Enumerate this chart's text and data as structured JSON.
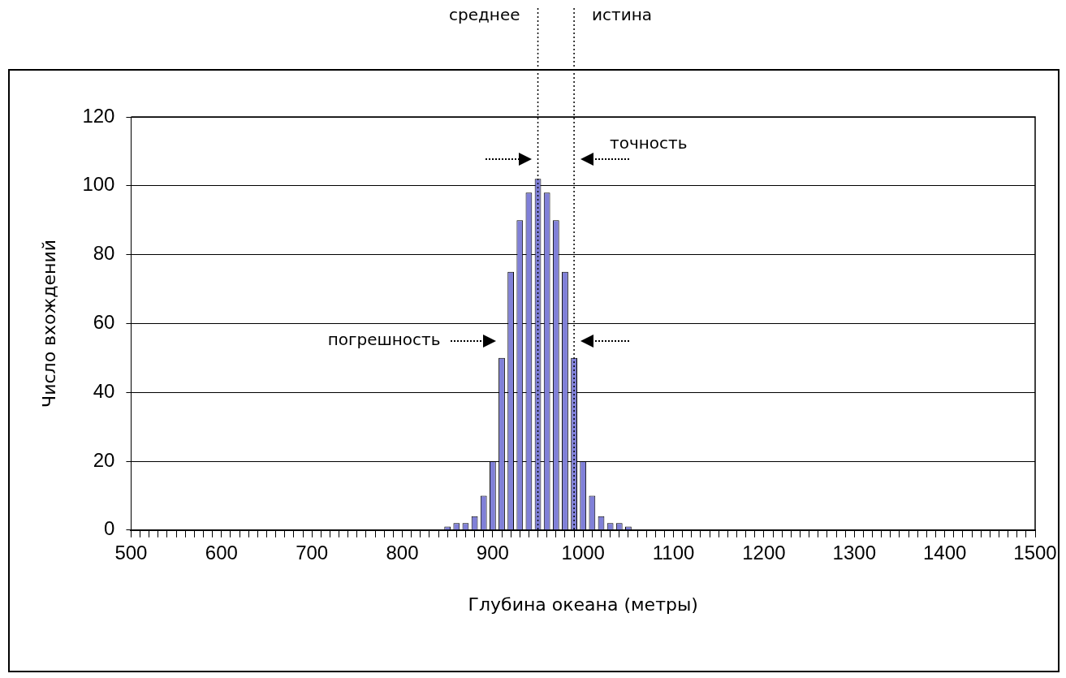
{
  "chart_data": {
    "type": "histogram",
    "xlabel": "Глубина океана (метры)",
    "ylabel": "Число вхождений",
    "bins": [
      845,
      855,
      865,
      875,
      885,
      895,
      905,
      915,
      925,
      935,
      945,
      955,
      965,
      975,
      985,
      995,
      1005,
      1015,
      1025,
      1035,
      1045,
      1055
    ],
    "values": [
      1,
      2,
      2,
      4,
      10,
      20,
      50,
      75,
      90,
      98,
      102,
      98,
      90,
      75,
      50,
      20,
      10,
      4,
      2,
      2,
      1
    ],
    "color": "#8080d8",
    "xlim": [
      500,
      1500
    ],
    "ylim": [
      0,
      120
    ],
    "yticks": [
      0,
      20,
      40,
      60,
      80,
      100,
      120
    ],
    "xticks": [
      500,
      {
        "value": 510,
        "label": null
      },
      {
        "value": 520,
        "label": null
      },
      {
        "value": 530,
        "label": null
      },
      {
        "value": 540,
        "label": null
      },
      {
        "value": 550,
        "label": null
      },
      {
        "value": 560,
        "label": null
      },
      {
        "value": 570,
        "label": null
      },
      {
        "value": 580,
        "label": null
      },
      {
        "value": 590,
        "label": null
      },
      600,
      {
        "value": 610,
        "label": null
      },
      {
        "value": 620,
        "label": null
      },
      {
        "value": 630,
        "label": null
      },
      {
        "value": 640,
        "label": null
      },
      {
        "value": 650,
        "label": null
      },
      {
        "value": 660,
        "label": null
      },
      {
        "value": 670,
        "label": null
      },
      {
        "value": 680,
        "label": null
      },
      {
        "value": 690,
        "label": null
      },
      700,
      {
        "value": 710,
        "label": null
      },
      {
        "value": 720,
        "label": null
      },
      {
        "value": 730,
        "label": null
      },
      {
        "value": 740,
        "label": null
      },
      {
        "value": 750,
        "label": null
      },
      {
        "value": 760,
        "label": null
      },
      {
        "value": 770,
        "label": null
      },
      {
        "value": 780,
        "label": null
      },
      {
        "value": 790,
        "label": null
      },
      800,
      {
        "value": 810,
        "label": null
      },
      {
        "value": 820,
        "label": null
      },
      {
        "value": 830,
        "label": null
      },
      {
        "value": 840,
        "label": null
      },
      {
        "value": 850,
        "label": null
      },
      {
        "value": 860,
        "label": null
      },
      {
        "value": 870,
        "label": null
      },
      {
        "value": 880,
        "label": null
      },
      {
        "value": 890,
        "label": null
      },
      900,
      {
        "value": 910,
        "label": null
      },
      {
        "value": 920,
        "label": null
      },
      {
        "value": 930,
        "label": null
      },
      {
        "value": 940,
        "label": null
      },
      {
        "value": 950,
        "label": null
      },
      {
        "value": 960,
        "label": null
      },
      {
        "value": 970,
        "label": null
      },
      {
        "value": 980,
        "label": null
      },
      {
        "value": 990,
        "label": null
      },
      1000,
      {
        "value": 1010,
        "label": null
      },
      {
        "value": 1020,
        "label": null
      },
      {
        "value": 1030,
        "label": null
      },
      {
        "value": 1040,
        "label": null
      },
      {
        "value": 1050,
        "label": null
      },
      {
        "value": 1060,
        "label": null
      },
      {
        "value": 1070,
        "label": null
      },
      {
        "value": 1080,
        "label": null
      },
      {
        "value": 1090,
        "label": null
      },
      1100,
      {
        "value": 1110,
        "label": null
      },
      {
        "value": 1120,
        "label": null
      },
      {
        "value": 1130,
        "label": null
      },
      {
        "value": 1140,
        "label": null
      },
      {
        "value": 1150,
        "label": null
      },
      {
        "value": 1160,
        "label": null
      },
      {
        "value": 1170,
        "label": null
      },
      {
        "value": 1180,
        "label": null
      },
      {
        "value": 1190,
        "label": null
      },
      1200,
      {
        "value": 1210,
        "label": null
      },
      {
        "value": 1220,
        "label": null
      },
      {
        "value": 1230,
        "label": null
      },
      {
        "value": 1240,
        "label": null
      },
      {
        "value": 1250,
        "label": null
      },
      {
        "value": 1260,
        "label": null
      },
      {
        "value": 1270,
        "label": null
      },
      {
        "value": 1280,
        "label": null
      },
      {
        "value": 1290,
        "label": null
      },
      1300,
      {
        "value": 1310,
        "label": null
      },
      {
        "value": 1320,
        "label": null
      },
      {
        "value": 1330,
        "label": null
      },
      {
        "value": 1340,
        "label": null
      },
      {
        "value": 1350,
        "label": null
      },
      {
        "value": 1360,
        "label": null
      },
      {
        "value": 1370,
        "label": null
      },
      {
        "value": 1380,
        "label": null
      },
      {
        "value": 1390,
        "label": null
      },
      1400,
      {
        "value": 1410,
        "label": null
      },
      {
        "value": 1420,
        "label": null
      },
      {
        "value": 1430,
        "label": null
      },
      {
        "value": 1440,
        "label": null
      },
      {
        "value": 1450,
        "label": null
      },
      {
        "value": 1460,
        "label": null
      },
      {
        "value": 1470,
        "label": null
      },
      {
        "value": 1480,
        "label": null
      },
      {
        "value": 1490,
        "label": null
      },
      1500
    ],
    "grid": "y",
    "ref_lines": [
      {
        "axis": "x",
        "value": 950,
        "label": "среднее",
        "line_style": "dotted"
      },
      {
        "axis": "x",
        "value": 990,
        "label": "истина",
        "line_style": "dotted"
      }
    ],
    "annotations": [
      "точность",
      "погрешность"
    ]
  }
}
